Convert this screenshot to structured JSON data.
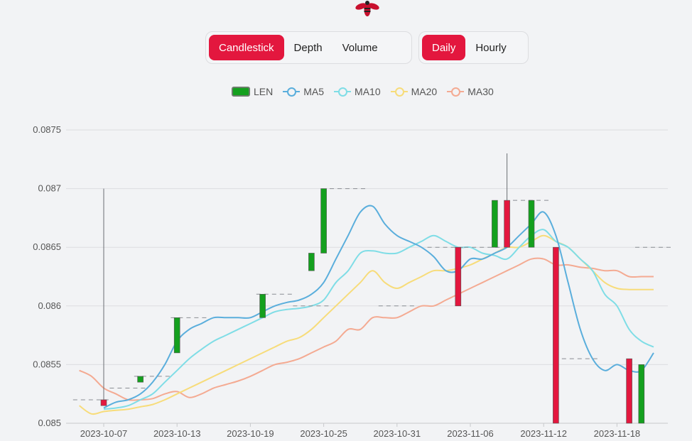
{
  "controls": {
    "chart_types": [
      {
        "label": "Candlestick",
        "active": true
      },
      {
        "label": "Depth",
        "active": false
      },
      {
        "label": "Volume",
        "active": false
      }
    ],
    "intervals": [
      {
        "label": "Daily",
        "active": true
      },
      {
        "label": "Hourly",
        "active": false
      }
    ]
  },
  "colors": {
    "up": "#14a01e",
    "down": "#e3173e",
    "ma5": "#5aaedc",
    "ma10": "#7fdde6",
    "ma20": "#f7dc7a",
    "ma30": "#f4aa92"
  },
  "chart_data": {
    "type": "candlestick",
    "legend": [
      "LEN",
      "MA5",
      "MA10",
      "MA20",
      "MA30"
    ],
    "legend_position": "top-center",
    "grid": true,
    "ylim": [
      0.085,
      0.0875
    ],
    "y_ticks": [
      "0.085",
      "0.0855",
      "0.086",
      "0.0865",
      "0.087",
      "0.0875"
    ],
    "x_tick_labels": [
      "2023-10-07",
      "2023-10-13",
      "2023-10-19",
      "2023-10-25",
      "2023-10-31",
      "2023-11-06",
      "2023-11-12",
      "2023-11-18"
    ],
    "candles": [
      {
        "date": "2023-10-07",
        "open": 0.0852,
        "close": 0.08515,
        "high": 0.087,
        "low": 0.08515
      },
      {
        "date": "2023-10-10",
        "open": 0.08535,
        "close": 0.0854,
        "high": 0.0854,
        "low": 0.08535
      },
      {
        "date": "2023-10-13",
        "open": 0.0856,
        "close": 0.0859,
        "high": 0.0859,
        "low": 0.0856
      },
      {
        "date": "2023-10-20",
        "open": 0.0859,
        "close": 0.0861,
        "high": 0.0861,
        "low": 0.0859
      },
      {
        "date": "2023-10-24",
        "open": 0.0863,
        "close": 0.08645,
        "high": 0.08645,
        "low": 0.0863
      },
      {
        "date": "2023-10-25",
        "open": 0.08645,
        "close": 0.087,
        "high": 0.087,
        "low": 0.08645
      },
      {
        "date": "2023-11-05",
        "open": 0.0865,
        "close": 0.086,
        "high": 0.0865,
        "low": 0.086
      },
      {
        "date": "2023-11-08",
        "open": 0.0865,
        "close": 0.0869,
        "high": 0.0869,
        "low": 0.0865
      },
      {
        "date": "2023-11-09",
        "open": 0.0869,
        "close": 0.0865,
        "high": 0.0873,
        "low": 0.0865
      },
      {
        "date": "2023-11-11",
        "open": 0.0865,
        "close": 0.0869,
        "high": 0.0869,
        "low": 0.0865
      },
      {
        "date": "2023-11-13",
        "open": 0.0865,
        "close": 0.085,
        "high": 0.0865,
        "low": 0.085
      },
      {
        "date": "2023-11-19",
        "open": 0.08555,
        "close": 0.085,
        "high": 0.08555,
        "low": 0.085
      },
      {
        "date": "2023-11-20",
        "open": 0.085,
        "close": 0.0855,
        "high": 0.0855,
        "low": 0.085
      }
    ],
    "ma_series": [
      {
        "name": "MA5",
        "color": "#5aaedc",
        "points": [
          [
            "2023-10-07",
            0.08513
          ],
          [
            "2023-10-08",
            0.08518
          ],
          [
            "2023-10-09",
            0.0852
          ],
          [
            "2023-10-10",
            0.08525
          ],
          [
            "2023-10-11",
            0.08535
          ],
          [
            "2023-10-12",
            0.0855
          ],
          [
            "2023-10-13",
            0.0857
          ],
          [
            "2023-10-14",
            0.0858
          ],
          [
            "2023-10-15",
            0.08585
          ],
          [
            "2023-10-16",
            0.0859
          ],
          [
            "2023-10-17",
            0.0859
          ],
          [
            "2023-10-18",
            0.0859
          ],
          [
            "2023-10-19",
            0.0859
          ],
          [
            "2023-10-20",
            0.08595
          ],
          [
            "2023-10-21",
            0.086
          ],
          [
            "2023-10-22",
            0.08603
          ],
          [
            "2023-10-23",
            0.08605
          ],
          [
            "2023-10-24",
            0.0861
          ],
          [
            "2023-10-25",
            0.0862
          ],
          [
            "2023-10-26",
            0.0864
          ],
          [
            "2023-10-27",
            0.0866
          ],
          [
            "2023-10-28",
            0.0868
          ],
          [
            "2023-10-29",
            0.08685
          ],
          [
            "2023-10-30",
            0.0867
          ],
          [
            "2023-10-31",
            0.0866
          ],
          [
            "2023-11-01",
            0.08655
          ],
          [
            "2023-11-02",
            0.0865
          ],
          [
            "2023-11-03",
            0.08642
          ],
          [
            "2023-11-04",
            0.0863
          ],
          [
            "2023-11-05",
            0.0863
          ],
          [
            "2023-11-06",
            0.0864
          ],
          [
            "2023-11-07",
            0.0864
          ],
          [
            "2023-11-08",
            0.08645
          ],
          [
            "2023-11-09",
            0.0865
          ],
          [
            "2023-11-10",
            0.0866
          ],
          [
            "2023-11-11",
            0.0867
          ],
          [
            "2023-11-12",
            0.0868
          ],
          [
            "2023-11-13",
            0.0866
          ],
          [
            "2023-11-14",
            0.0862
          ],
          [
            "2023-11-15",
            0.0858
          ],
          [
            "2023-11-16",
            0.08555
          ],
          [
            "2023-11-17",
            0.08545
          ],
          [
            "2023-11-18",
            0.0855
          ],
          [
            "2023-11-19",
            0.08545
          ],
          [
            "2023-11-20",
            0.08545
          ],
          [
            "2023-11-21",
            0.0856
          ]
        ]
      },
      {
        "name": "MA10",
        "color": "#7fdde6",
        "points": [
          [
            "2023-10-07",
            0.08512
          ],
          [
            "2023-10-08",
            0.08513
          ],
          [
            "2023-10-09",
            0.08515
          ],
          [
            "2023-10-10",
            0.0852
          ],
          [
            "2023-10-11",
            0.08525
          ],
          [
            "2023-10-12",
            0.08535
          ],
          [
            "2023-10-13",
            0.08545
          ],
          [
            "2023-10-14",
            0.08555
          ],
          [
            "2023-10-15",
            0.08563
          ],
          [
            "2023-10-16",
            0.0857
          ],
          [
            "2023-10-17",
            0.08575
          ],
          [
            "2023-10-18",
            0.0858
          ],
          [
            "2023-10-19",
            0.08585
          ],
          [
            "2023-10-20",
            0.0859
          ],
          [
            "2023-10-21",
            0.08595
          ],
          [
            "2023-10-22",
            0.08597
          ],
          [
            "2023-10-23",
            0.08598
          ],
          [
            "2023-10-24",
            0.086
          ],
          [
            "2023-10-25",
            0.08605
          ],
          [
            "2023-10-26",
            0.0862
          ],
          [
            "2023-10-27",
            0.0863
          ],
          [
            "2023-10-28",
            0.08645
          ],
          [
            "2023-10-29",
            0.08647
          ],
          [
            "2023-10-30",
            0.08645
          ],
          [
            "2023-10-31",
            0.08645
          ],
          [
            "2023-11-01",
            0.0865
          ],
          [
            "2023-11-02",
            0.08655
          ],
          [
            "2023-11-03",
            0.0866
          ],
          [
            "2023-11-04",
            0.08655
          ],
          [
            "2023-11-05",
            0.0865
          ],
          [
            "2023-11-06",
            0.0865
          ],
          [
            "2023-11-07",
            0.08645
          ],
          [
            "2023-11-08",
            0.08643
          ],
          [
            "2023-11-09",
            0.0864
          ],
          [
            "2023-11-10",
            0.0865
          ],
          [
            "2023-11-11",
            0.0866
          ],
          [
            "2023-11-12",
            0.08665
          ],
          [
            "2023-11-13",
            0.08655
          ],
          [
            "2023-11-14",
            0.0865
          ],
          [
            "2023-11-15",
            0.0864
          ],
          [
            "2023-11-16",
            0.0863
          ],
          [
            "2023-11-17",
            0.0861
          ],
          [
            "2023-11-18",
            0.086
          ],
          [
            "2023-11-19",
            0.0858
          ],
          [
            "2023-11-20",
            0.0857
          ],
          [
            "2023-11-21",
            0.08565
          ]
        ]
      },
      {
        "name": "MA20",
        "color": "#f7dc7a",
        "points": [
          [
            "2023-10-05",
            0.08515
          ],
          [
            "2023-10-06",
            0.08508
          ],
          [
            "2023-10-07",
            0.0851
          ],
          [
            "2023-10-08",
            0.08511
          ],
          [
            "2023-10-09",
            0.08512
          ],
          [
            "2023-10-10",
            0.08514
          ],
          [
            "2023-10-11",
            0.08516
          ],
          [
            "2023-10-12",
            0.0852
          ],
          [
            "2023-10-13",
            0.08525
          ],
          [
            "2023-10-14",
            0.0853
          ],
          [
            "2023-10-15",
            0.08535
          ],
          [
            "2023-10-16",
            0.0854
          ],
          [
            "2023-10-17",
            0.08545
          ],
          [
            "2023-10-18",
            0.0855
          ],
          [
            "2023-10-19",
            0.08555
          ],
          [
            "2023-10-20",
            0.0856
          ],
          [
            "2023-10-21",
            0.08565
          ],
          [
            "2023-10-22",
            0.0857
          ],
          [
            "2023-10-23",
            0.08573
          ],
          [
            "2023-10-24",
            0.0858
          ],
          [
            "2023-10-25",
            0.0859
          ],
          [
            "2023-10-26",
            0.086
          ],
          [
            "2023-10-27",
            0.0861
          ],
          [
            "2023-10-28",
            0.0862
          ],
          [
            "2023-10-29",
            0.0863
          ],
          [
            "2023-10-30",
            0.0862
          ],
          [
            "2023-10-31",
            0.08615
          ],
          [
            "2023-11-01",
            0.0862
          ],
          [
            "2023-11-02",
            0.08625
          ],
          [
            "2023-11-03",
            0.0863
          ],
          [
            "2023-11-04",
            0.0863
          ],
          [
            "2023-11-05",
            0.08632
          ],
          [
            "2023-11-06",
            0.08635
          ],
          [
            "2023-11-07",
            0.0864
          ],
          [
            "2023-11-08",
            0.08645
          ],
          [
            "2023-11-09",
            0.0865
          ],
          [
            "2023-11-10",
            0.0865
          ],
          [
            "2023-11-11",
            0.08655
          ],
          [
            "2023-11-12",
            0.0866
          ],
          [
            "2023-11-13",
            0.08655
          ],
          [
            "2023-11-14",
            0.0865
          ],
          [
            "2023-11-15",
            0.0864
          ],
          [
            "2023-11-16",
            0.0863
          ],
          [
            "2023-11-17",
            0.0862
          ],
          [
            "2023-11-18",
            0.08615
          ],
          [
            "2023-11-19",
            0.08614
          ],
          [
            "2023-11-20",
            0.08614
          ],
          [
            "2023-11-21",
            0.08614
          ]
        ]
      },
      {
        "name": "MA30",
        "color": "#f4aa92",
        "points": [
          [
            "2023-10-05",
            0.08545
          ],
          [
            "2023-10-06",
            0.0854
          ],
          [
            "2023-10-07",
            0.0853
          ],
          [
            "2023-10-08",
            0.08525
          ],
          [
            "2023-10-09",
            0.0852
          ],
          [
            "2023-10-10",
            0.0852
          ],
          [
            "2023-10-11",
            0.08521
          ],
          [
            "2023-10-12",
            0.08525
          ],
          [
            "2023-10-13",
            0.08527
          ],
          [
            "2023-10-14",
            0.08522
          ],
          [
            "2023-10-15",
            0.08525
          ],
          [
            "2023-10-16",
            0.0853
          ],
          [
            "2023-10-17",
            0.08533
          ],
          [
            "2023-10-18",
            0.08536
          ],
          [
            "2023-10-19",
            0.0854
          ],
          [
            "2023-10-20",
            0.08545
          ],
          [
            "2023-10-21",
            0.0855
          ],
          [
            "2023-10-22",
            0.08552
          ],
          [
            "2023-10-23",
            0.08555
          ],
          [
            "2023-10-24",
            0.0856
          ],
          [
            "2023-10-25",
            0.08565
          ],
          [
            "2023-10-26",
            0.0857
          ],
          [
            "2023-10-27",
            0.0858
          ],
          [
            "2023-10-28",
            0.0858
          ],
          [
            "2023-10-29",
            0.0859
          ],
          [
            "2023-10-30",
            0.0859
          ],
          [
            "2023-10-31",
            0.0859
          ],
          [
            "2023-11-01",
            0.08595
          ],
          [
            "2023-11-02",
            0.086
          ],
          [
            "2023-11-03",
            0.086
          ],
          [
            "2023-11-04",
            0.08605
          ],
          [
            "2023-11-05",
            0.0861
          ],
          [
            "2023-11-06",
            0.08615
          ],
          [
            "2023-11-07",
            0.0862
          ],
          [
            "2023-11-08",
            0.08625
          ],
          [
            "2023-11-09",
            0.0863
          ],
          [
            "2023-11-10",
            0.08635
          ],
          [
            "2023-11-11",
            0.0864
          ],
          [
            "2023-11-12",
            0.0864
          ],
          [
            "2023-11-13",
            0.08635
          ],
          [
            "2023-11-14",
            0.08635
          ],
          [
            "2023-11-15",
            0.08633
          ],
          [
            "2023-11-16",
            0.08632
          ],
          [
            "2023-11-17",
            0.0863
          ],
          [
            "2023-11-18",
            0.0863
          ],
          [
            "2023-11-19",
            0.08625
          ],
          [
            "2023-11-20",
            0.08625
          ],
          [
            "2023-11-21",
            0.08625
          ]
        ]
      }
    ],
    "close_markers": [
      {
        "date": "2023-10-06",
        "value": 0.0852
      },
      {
        "date": "2023-10-09",
        "value": 0.0853
      },
      {
        "date": "2023-10-11",
        "value": 0.0854
      },
      {
        "date": "2023-10-14",
        "value": 0.0859
      },
      {
        "date": "2023-10-21",
        "value": 0.0861
      },
      {
        "date": "2023-10-24",
        "value": 0.086
      },
      {
        "date": "2023-10-27",
        "value": 0.087
      },
      {
        "date": "2023-10-31",
        "value": 0.086
      },
      {
        "date": "2023-11-04",
        "value": 0.0865
      },
      {
        "date": "2023-11-07",
        "value": 0.0865
      },
      {
        "date": "2023-11-11",
        "value": 0.0869
      },
      {
        "date": "2023-11-15",
        "value": 0.08555
      },
      {
        "date": "2023-11-21",
        "value": 0.0865
      }
    ]
  }
}
